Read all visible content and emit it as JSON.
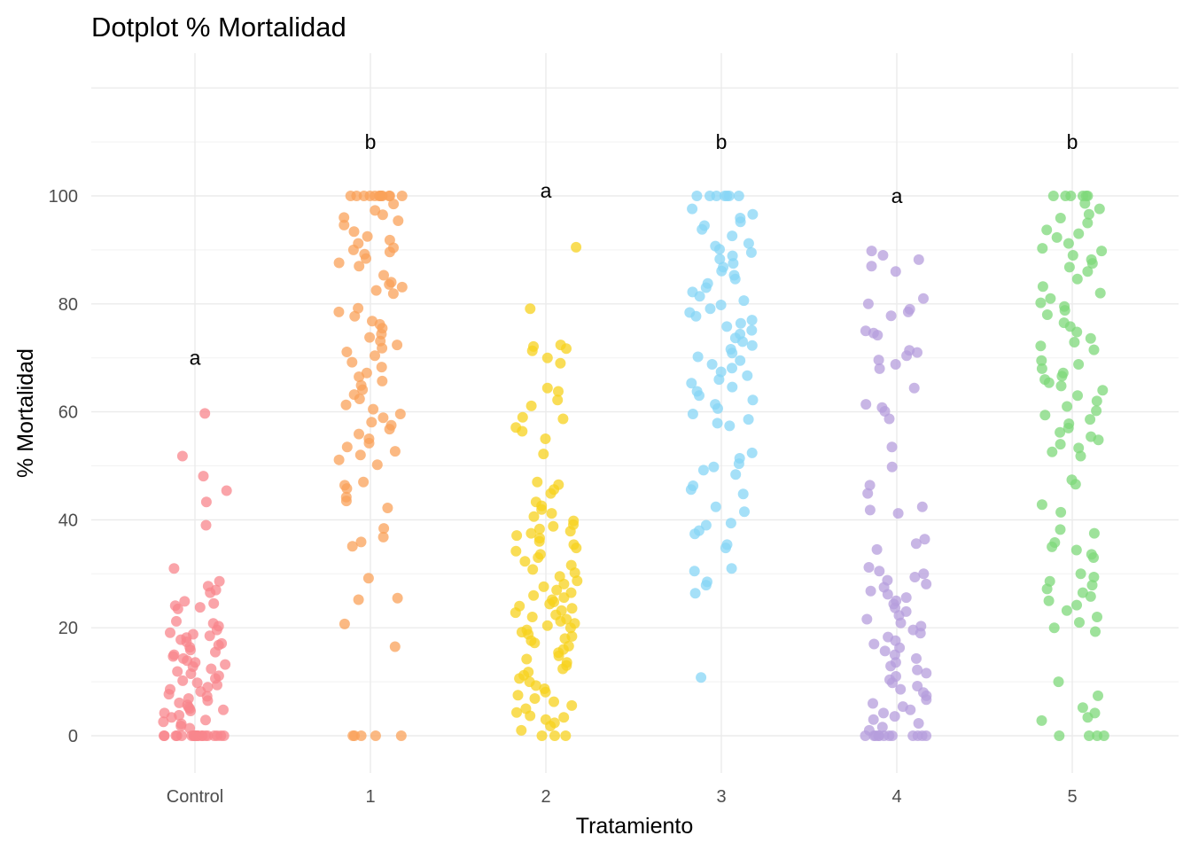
{
  "chart_data": {
    "type": "scatter",
    "title": "Dotplot % Mortalidad",
    "xlabel": "Tratamiento",
    "ylabel": "% Mortalidad",
    "categories": [
      "Control",
      "1",
      "2",
      "3",
      "4",
      "5"
    ],
    "ylim": [
      -7,
      123
    ],
    "y_ticks": [
      0,
      20,
      40,
      60,
      80,
      100
    ],
    "grid": true,
    "jitter": true,
    "significance_letters": [
      {
        "category": "Control",
        "letter": "a",
        "y": 70
      },
      {
        "category": "1",
        "letter": "b",
        "y": 110
      },
      {
        "category": "2",
        "letter": "a",
        "y": 101
      },
      {
        "category": "3",
        "letter": "b",
        "y": 110
      },
      {
        "category": "4",
        "letter": "a",
        "y": 100
      },
      {
        "category": "5",
        "letter": "b",
        "y": 110
      }
    ],
    "series": [
      {
        "category": "Control",
        "color": "#F8868C",
        "values": [
          59.7,
          51.8,
          48.1,
          45.4,
          43.3,
          39.0,
          31.0,
          28.6,
          27.7,
          27.0,
          26.5,
          24.9,
          24.5,
          24.1,
          23.8,
          23.5,
          21.2,
          20.8,
          20.3,
          19.6,
          19.1,
          18.8,
          18.5,
          18.2,
          17.8,
          17.4,
          17.1,
          16.8,
          16.4,
          15.9,
          15.5,
          15.0,
          14.7,
          14.3,
          13.9,
          13.6,
          13.2,
          12.8,
          12.4,
          11.9,
          11.5,
          11.1,
          10.6,
          10.2,
          9.8,
          9.4,
          9.0,
          8.6,
          8.2,
          7.7,
          7.3,
          6.9,
          6.5,
          6.1,
          5.7,
          5.3,
          5.0,
          4.8,
          4.6,
          4.2,
          3.8,
          3.4,
          2.9,
          2.6,
          2.2,
          1.8,
          1.4,
          0,
          0,
          0,
          0,
          0,
          0,
          0,
          0,
          0,
          0,
          0,
          0,
          0,
          0,
          0,
          0,
          0,
          0,
          0,
          0
        ]
      },
      {
        "category": "1",
        "color": "#F9A25A",
        "values": [
          100,
          100,
          100,
          100,
          100,
          100,
          100,
          100,
          100,
          100,
          100,
          100,
          98.5,
          97.3,
          96.5,
          96.0,
          95.4,
          94.6,
          93.4,
          92.5,
          91.8,
          91.2,
          90.4,
          90.0,
          89.6,
          89.2,
          88.4,
          87.6,
          87.0,
          85.3,
          84.0,
          83.6,
          83.1,
          82.5,
          81.9,
          79.2,
          78.5,
          77.7,
          76.8,
          76.2,
          75.5,
          74.4,
          73.8,
          73.1,
          72.4,
          71.8,
          71.1,
          70.4,
          69.2,
          68.3,
          67.2,
          66.5,
          65.7,
          64.9,
          64.1,
          63.2,
          62.4,
          61.3,
          60.5,
          59.6,
          58.9,
          58.1,
          57.5,
          56.8,
          55.9,
          55.0,
          54.2,
          53.5,
          52.7,
          52.0,
          51.1,
          50.2,
          47.0,
          46.4,
          45.8,
          44.2,
          43.5,
          42.2,
          38.4,
          36.8,
          35.9,
          35.1,
          29.2,
          25.5,
          25.2,
          20.7,
          16.5,
          0,
          0,
          0,
          0,
          0
        ]
      },
      {
        "category": "2",
        "color": "#F7D11E",
        "values": [
          90.5,
          79.1,
          72.4,
          72.1,
          71.7,
          71.3,
          70.0,
          69.0,
          64.4,
          63.8,
          62.2,
          61.1,
          59.0,
          58.7,
          57.1,
          56.4,
          55.0,
          52.2,
          47.0,
          46.5,
          45.6,
          44.9,
          43.3,
          42.6,
          41.9,
          41.2,
          40.6,
          39.8,
          39.1,
          38.8,
          38.3,
          37.9,
          37.5,
          37.1,
          36.6,
          36.0,
          35.4,
          34.8,
          34.2,
          33.6,
          33.0,
          32.3,
          31.6,
          30.8,
          30.2,
          29.5,
          28.7,
          28.1,
          27.6,
          27.0,
          26.5,
          26.0,
          25.6,
          25.2,
          24.8,
          24.4,
          24.0,
          23.6,
          23.2,
          22.8,
          22.4,
          22.0,
          21.6,
          21.2,
          20.8,
          20.4,
          20.0,
          19.6,
          19.2,
          18.8,
          18.4,
          18.0,
          17.6,
          17.2,
          16.6,
          16.0,
          15.4,
          14.8,
          14.2,
          13.6,
          13.0,
          12.4,
          11.8,
          11.2,
          10.6,
          10.0,
          9.3,
          8.7,
          8.1,
          7.5,
          6.9,
          6.3,
          5.6,
          5.0,
          4.3,
          3.7,
          3.4,
          3.0,
          2.4,
          1.8,
          1.0,
          0,
          0,
          0
        ]
      },
      {
        "category": "3",
        "color": "#87D5F5",
        "values": [
          100,
          100,
          100,
          100,
          100,
          100,
          100,
          97.6,
          96.6,
          95.9,
          95.2,
          94.5,
          93.8,
          92.6,
          91.2,
          90.7,
          90.1,
          89.5,
          88.9,
          88.3,
          87.5,
          86.8,
          86.1,
          85.3,
          84.6,
          83.8,
          83.0,
          82.2,
          81.4,
          80.6,
          79.8,
          79.1,
          78.4,
          77.7,
          77.0,
          76.4,
          75.8,
          75.1,
          74.4,
          73.7,
          73.0,
          72.3,
          71.6,
          70.9,
          70.2,
          69.5,
          68.8,
          68.1,
          67.4,
          66.7,
          66.0,
          65.3,
          64.6,
          63.8,
          63.0,
          62.2,
          61.4,
          60.6,
          59.6,
          58.6,
          57.9,
          57.4,
          52.4,
          51.4,
          50.4,
          49.8,
          49.2,
          48.4,
          46.3,
          45.6,
          44.8,
          42.4,
          41.5,
          39.4,
          39.0,
          38.0,
          37.4,
          35.4,
          34.8,
          31.0,
          30.5,
          28.5,
          27.9,
          26.4,
          10.8
        ]
      },
      {
        "category": "4",
        "color": "#B59DDC",
        "values": [
          89.8,
          89.0,
          88.2,
          87.0,
          86.0,
          81.0,
          80.0,
          79.0,
          78.5,
          77.8,
          75.0,
          74.6,
          74.2,
          71.4,
          71.0,
          70.4,
          69.6,
          68.8,
          68.0,
          64.4,
          61.4,
          60.8,
          60.1,
          58.7,
          53.5,
          49.8,
          46.4,
          44.9,
          42.4,
          41.8,
          41.2,
          36.4,
          35.6,
          34.5,
          31.2,
          30.5,
          30.0,
          29.4,
          28.8,
          28.1,
          27.5,
          26.8,
          26.2,
          25.6,
          25.0,
          24.4,
          23.7,
          23.0,
          22.3,
          21.6,
          20.9,
          20.3,
          19.6,
          19.0,
          18.3,
          17.6,
          17.0,
          16.3,
          15.7,
          15.0,
          14.3,
          13.6,
          12.9,
          12.2,
          11.6,
          11.0,
          10.4,
          9.8,
          9.2,
          8.6,
          8.0,
          7.4,
          6.7,
          6.0,
          5.4,
          4.8,
          4.2,
          3.6,
          3.0,
          2.3,
          1.6,
          1.0,
          0,
          0,
          0,
          0,
          0,
          0,
          0,
          0,
          0,
          0,
          0,
          0
        ]
      },
      {
        "category": "5",
        "color": "#7DD87A",
        "values": [
          100,
          100,
          100,
          100,
          100,
          100,
          98.6,
          97.6,
          96.6,
          95.9,
          95.0,
          93.7,
          93.0,
          92.3,
          91.2,
          90.3,
          89.8,
          89.0,
          88.2,
          87.5,
          86.8,
          86.0,
          84.6,
          83.2,
          82.0,
          81.0,
          80.2,
          79.5,
          78.8,
          78.0,
          76.5,
          75.8,
          74.8,
          73.6,
          72.9,
          72.2,
          71.5,
          69.5,
          68.8,
          68.0,
          67.2,
          66.6,
          66.0,
          65.4,
          64.8,
          64.0,
          63.0,
          62.0,
          61.0,
          60.2,
          59.4,
          58.6,
          57.8,
          57.0,
          56.2,
          55.4,
          54.8,
          54.0,
          53.3,
          52.6,
          51.8,
          47.4,
          46.6,
          42.8,
          41.4,
          38.2,
          37.5,
          35.8,
          35.0,
          34.4,
          33.6,
          33.0,
          30.0,
          29.4,
          28.6,
          27.9,
          27.2,
          26.5,
          25.8,
          25.0,
          24.2,
          23.2,
          22.0,
          21.0,
          20.0,
          19.3,
          10.0,
          7.4,
          5.2,
          4.2,
          3.4,
          2.8,
          0,
          0,
          0,
          0
        ]
      }
    ]
  }
}
